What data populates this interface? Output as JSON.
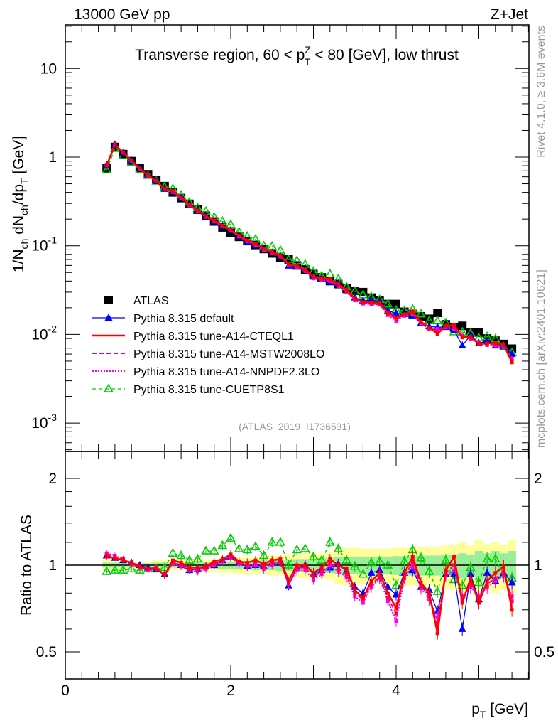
{
  "header": {
    "energy": "13000 GeV pp",
    "process": "Z+Jet"
  },
  "side_text": {
    "rivet": "Rivet 4.1.0, ≥ 3.6M events",
    "mcplots": "mcplots.cern.ch [arXiv:2401.10621]"
  },
  "analysis_id": "(ATLAS_2019_I1736531)",
  "colors": {
    "atlas": "#000000",
    "default": "#0000ff",
    "cteql1": "#ff0000",
    "mstw": "#ff0066",
    "nnpdf": "#ff00ff",
    "cuetp8s1": "#00cc00",
    "band_total": "#ffff99",
    "band_stat": "#99ee99"
  },
  "chart_data": [
    {
      "type": "scatter",
      "panel": "main",
      "title": {
        "pre": "Transverse region, 60 < p",
        "sup": "Z",
        "sub": "T",
        "post": " < 80 [GeV], low thrust"
      },
      "ylabel_parts": [
        "1/N",
        "ch",
        " dN",
        "ch",
        "/dp",
        "T",
        " [GeV]"
      ],
      "yscale": "log",
      "ylim": [
        0.0005,
        31.6
      ],
      "xlim": [
        0,
        5.6
      ],
      "ytick_labels": [
        {
          "base": "10",
          "exp": "-3",
          "value": 0.001
        },
        {
          "base": "10",
          "exp": "-2",
          "value": 0.01
        },
        {
          "base": "10",
          "exp": "-1",
          "value": 0.1
        },
        {
          "base": "1",
          "exp": "",
          "value": 1
        },
        {
          "base": "10",
          "exp": "",
          "value": 10
        }
      ],
      "legend_position": "center-left",
      "x": [
        0.5,
        0.6,
        0.7,
        0.8,
        0.9,
        1.0,
        1.1,
        1.2,
        1.3,
        1.4,
        1.5,
        1.6,
        1.7,
        1.8,
        1.9,
        2.0,
        2.1,
        2.2,
        2.3,
        2.4,
        2.5,
        2.6,
        2.7,
        2.8,
        2.9,
        3.0,
        3.1,
        3.2,
        3.3,
        3.4,
        3.5,
        3.6,
        3.7,
        3.8,
        3.9,
        4.0,
        4.1,
        4.2,
        4.3,
        4.4,
        4.5,
        4.6,
        4.7,
        4.8,
        4.9,
        5.0,
        5.1,
        5.2,
        5.3,
        5.4
      ],
      "series": [
        {
          "key": "atlas",
          "name": "ATLAS",
          "values": [
            0.75,
            1.3,
            1.08,
            0.9,
            0.75,
            0.64,
            0.55,
            0.47,
            0.4,
            0.345,
            0.297,
            0.255,
            0.218,
            0.188,
            0.161,
            0.14,
            0.126,
            0.113,
            0.102,
            0.092,
            0.082,
            0.074,
            0.07,
            0.06,
            0.054,
            0.048,
            0.044,
            0.04,
            0.037,
            0.033,
            0.031,
            0.03,
            0.026,
            0.024,
            0.022,
            0.022,
            0.018,
            0.017,
            0.016,
            0.015,
            0.0175,
            0.013,
            0.012,
            0.0125,
            0.0105,
            0.0105,
            0.009,
            0.0085,
            0.0078,
            0.0069
          ]
        },
        {
          "key": "default",
          "name": "Pythia 8.315 default"
        },
        {
          "key": "cteql1",
          "name": "Pythia 8.315 tune-A14-CTEQL1"
        },
        {
          "key": "mstw",
          "name": "Pythia 8.315 tune-A14-MSTW2008LO"
        },
        {
          "key": "nnpdf",
          "name": "Pythia 8.315 tune-A14-NNPDF2.3LO"
        },
        {
          "key": "cuetp8s1",
          "name": "Pythia 8.315 tune-CUETP8S1"
        }
      ],
      "note": "model values in main panel = ATLAS value x ratio"
    },
    {
      "type": "line",
      "panel": "ratio",
      "ylabel": "Ratio to ATLAS",
      "xlabel": {
        "main": "p",
        "sub": "T",
        "unit": " [GeV]"
      },
      "yscale": "log",
      "ylim": [
        0.4,
        2.48
      ],
      "xlim": [
        0,
        5.6
      ],
      "xtick_labels": [
        "0",
        "2",
        "4"
      ],
      "xtick_values": [
        0,
        2,
        4
      ],
      "ytick_labels": [
        "0.5",
        "1",
        "2"
      ],
      "ytick_values": [
        0.5,
        1,
        2
      ],
      "band_total_err": [
        0.04,
        0.04,
        0.03,
        0.03,
        0.03,
        0.03,
        0.04,
        0.04,
        0.04,
        0.04,
        0.05,
        0.05,
        0.05,
        0.05,
        0.06,
        0.06,
        0.07,
        0.07,
        0.07,
        0.07,
        0.08,
        0.08,
        0.09,
        0.09,
        0.1,
        0.1,
        0.1,
        0.11,
        0.14,
        0.15,
        0.15,
        0.14,
        0.14,
        0.14,
        0.14,
        0.15,
        0.15,
        0.15,
        0.16,
        0.16,
        0.16,
        0.17,
        0.18,
        0.2,
        0.17,
        0.22,
        0.18,
        0.2,
        0.18,
        0.22
      ],
      "band_stat_err": [
        0.02,
        0.02,
        0.015,
        0.015,
        0.015,
        0.015,
        0.02,
        0.02,
        0.02,
        0.02,
        0.025,
        0.025,
        0.025,
        0.03,
        0.03,
        0.03,
        0.035,
        0.035,
        0.04,
        0.04,
        0.04,
        0.045,
        0.045,
        0.05,
        0.05,
        0.05,
        0.055,
        0.06,
        0.07,
        0.07,
        0.07,
        0.07,
        0.07,
        0.07,
        0.07,
        0.075,
        0.075,
        0.08,
        0.08,
        0.08,
        0.08,
        0.09,
        0.09,
        0.1,
        0.09,
        0.12,
        0.1,
        0.12,
        0.1,
        0.12
      ],
      "series": [
        {
          "key": "default",
          "values": [
            1.08,
            1.06,
            1.04,
            1.02,
            1.0,
            0.98,
            0.97,
            0.93,
            1.02,
            1.0,
            0.96,
            0.97,
            0.99,
            1.0,
            1.04,
            1.07,
            1.02,
            0.99,
            1.0,
            0.99,
            1.02,
            1.03,
            0.85,
            0.98,
            1.0,
            0.93,
            0.96,
            0.98,
            1.01,
            0.95,
            0.84,
            0.8,
            0.94,
            0.96,
            0.84,
            0.79,
            0.94,
            0.96,
            0.84,
            0.82,
            0.69,
            0.93,
            0.93,
            0.6,
            0.93,
            0.76,
            0.94,
            0.88,
            0.94,
            0.87
          ]
        },
        {
          "key": "cteql1",
          "values": [
            1.07,
            1.06,
            1.04,
            1.02,
            0.99,
            0.97,
            0.98,
            0.92,
            1.04,
            1.02,
            0.98,
            0.98,
            0.99,
            1.03,
            1.05,
            1.09,
            1.03,
            1.02,
            1.04,
            1.01,
            1.04,
            1.05,
            0.88,
            1.0,
            1.0,
            0.94,
            0.98,
            1.05,
            1.0,
            0.97,
            0.82,
            0.77,
            0.88,
            0.94,
            0.8,
            0.71,
            0.94,
            1.07,
            0.87,
            0.8,
            0.58,
            0.96,
            1.07,
            0.74,
            0.9,
            0.74,
            0.88,
            0.94,
            0.99,
            0.7
          ]
        },
        {
          "key": "mstw",
          "values": [
            1.09,
            1.07,
            1.05,
            1.01,
            0.98,
            0.97,
            0.97,
            0.93,
            1.02,
            1.0,
            0.97,
            0.96,
            0.98,
            1.01,
            1.04,
            1.07,
            1.02,
            1.0,
            1.02,
            0.99,
            1.02,
            1.03,
            0.87,
            0.98,
            0.98,
            0.91,
            0.95,
            1.02,
            0.97,
            0.93,
            0.8,
            0.76,
            0.86,
            0.91,
            0.77,
            0.68,
            0.92,
            1.02,
            0.85,
            0.78,
            0.62,
            0.94,
            1.0,
            0.76,
            0.86,
            0.77,
            0.86,
            0.9,
            0.95,
            0.75
          ]
        },
        {
          "key": "nnpdf",
          "values": [
            1.1,
            1.08,
            1.05,
            1.01,
            0.98,
            0.96,
            0.97,
            0.93,
            1.01,
            0.99,
            0.96,
            0.95,
            0.97,
            1.0,
            1.03,
            1.06,
            1.01,
            0.99,
            1.0,
            0.97,
            1.0,
            1.02,
            0.86,
            0.96,
            0.96,
            0.89,
            0.93,
            1.0,
            0.95,
            0.91,
            0.78,
            0.74,
            0.84,
            0.9,
            0.75,
            0.64,
            0.9,
            1.0,
            0.83,
            0.76,
            0.66,
            0.92,
            0.96,
            0.78,
            0.84,
            0.78,
            0.84,
            0.88,
            0.92,
            0.78
          ]
        },
        {
          "key": "cuetp8s1",
          "values": [
            0.95,
            0.96,
            0.96,
            0.97,
            0.96,
            0.97,
            0.97,
            0.98,
            1.1,
            1.08,
            1.04,
            1.05,
            1.12,
            1.12,
            1.17,
            1.24,
            1.14,
            1.13,
            1.16,
            1.08,
            1.2,
            1.2,
            1.0,
            1.13,
            1.14,
            1.07,
            1.04,
            1.2,
            1.14,
            1.04,
            0.99,
            0.93,
            1.02,
            1.03,
            1.0,
            0.85,
            1.03,
            1.13,
            1.06,
            0.95,
            0.81,
            1.04,
            0.89,
            0.85,
            0.98,
            0.87,
            1.05,
            1.05,
            0.93,
            0.9
          ]
        }
      ]
    }
  ]
}
